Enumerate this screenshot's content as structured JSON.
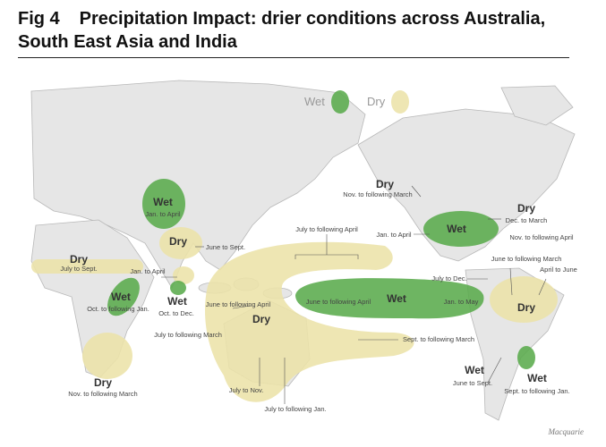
{
  "header": {
    "figure": "Fig 4",
    "title": "Precipitation Impact: drier conditions across Australia, South East Asia and India"
  },
  "legend": [
    "Wet",
    "Dry"
  ],
  "regions": [
    {
      "name": "Wet",
      "period": "Jan. to April"
    },
    {
      "name": "Dry",
      "period": "June to Sept."
    },
    {
      "name": "Dry",
      "period": "July to Sept."
    },
    {
      "name": "Wet",
      "period": "Oct. to Dec."
    },
    {
      "name": "Wet",
      "period": "Oct. to following Jan."
    },
    {
      "name": "Dry",
      "period": "Nov. to following March"
    },
    {
      "name": "Dry"
    },
    {
      "name": "Wet",
      "period": "Jan. to May"
    },
    {
      "name": "Dry",
      "period": "Nov. to following March"
    },
    {
      "name": "Wet",
      "period": "Jan. to April"
    },
    {
      "name": "Dry",
      "period": "Dec. to March"
    },
    {
      "name": "Dry"
    },
    {
      "name": "Wet",
      "period": "June to Sept."
    },
    {
      "name": "Wet",
      "period": "Sept. to following Jan."
    }
  ],
  "annotations": [
    "Jan. to April",
    "June to following April",
    "July to following March",
    "July to Nov.",
    "July to following Jan.",
    "July to following April",
    "June to following April",
    "Sept. to following March",
    "Nov. to following April",
    "June to following March",
    "April to June",
    "July to Dec."
  ],
  "source": "Macquarie"
}
